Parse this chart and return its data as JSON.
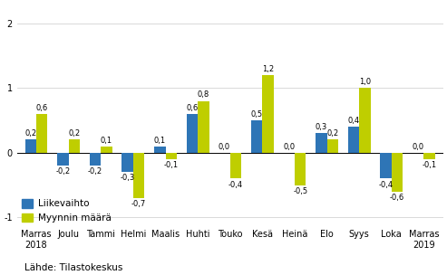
{
  "categories": [
    "Marras\n2018",
    "Joulu",
    "Tammi",
    "Helmi",
    "Maalis",
    "Huhti",
    "Touko",
    "Kesä",
    "Heinä",
    "Elo",
    "Syys",
    "Loka",
    "Marras\n2019"
  ],
  "liikevaihto": [
    0.2,
    -0.2,
    -0.2,
    -0.3,
    0.1,
    0.6,
    0.0,
    0.5,
    0.0,
    0.3,
    0.4,
    -0.4,
    0.0
  ],
  "myynninmaara": [
    0.6,
    0.2,
    0.1,
    -0.7,
    -0.1,
    0.8,
    -0.4,
    1.2,
    -0.5,
    0.2,
    1.0,
    -0.6,
    -0.1
  ],
  "color_liikevaihto": "#2e75b6",
  "color_myynninmaara": "#bfce00",
  "ylim": [
    -1.15,
    2.3
  ],
  "yticks": [
    -1,
    0,
    1,
    2
  ],
  "legend_liikevaihto": "Liikevaihto",
  "legend_myynninmaara": "Myynnin määrä",
  "source_text": "Lähde: Tilastokeskus",
  "bar_width": 0.35,
  "label_fontsize": 6.0,
  "tick_fontsize": 7.0,
  "legend_fontsize": 7.5,
  "source_fontsize": 7.5
}
